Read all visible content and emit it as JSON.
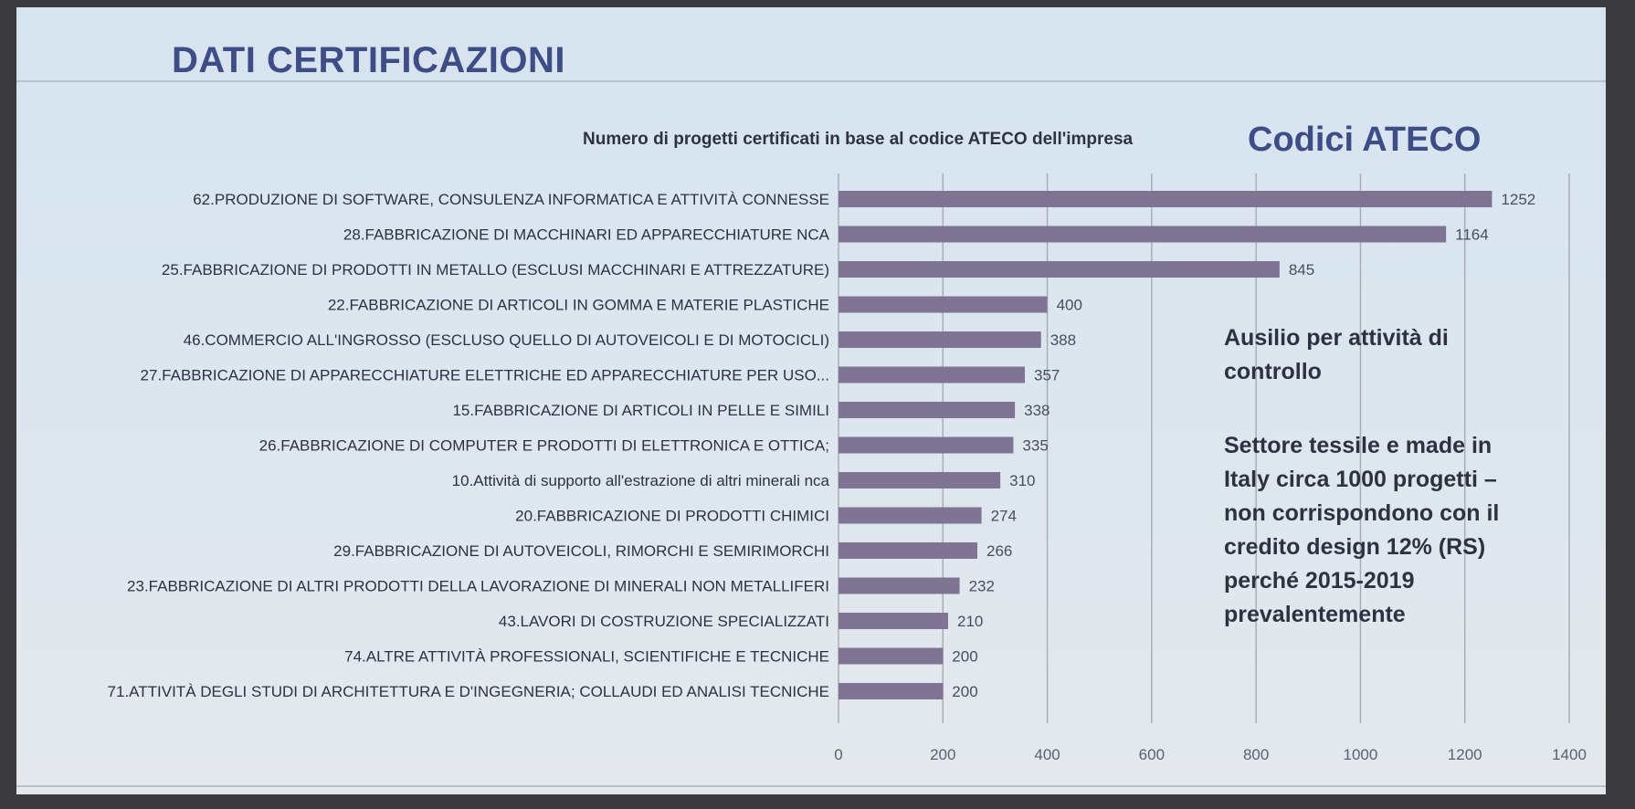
{
  "slide": {
    "title": "DATI CERTIFICAZIONI",
    "corner_label": "Codici ATECO",
    "note_1": "Ausilio per attività di controllo",
    "note_2": "Settore tessile e made in Italy circa 1000 progetti – non corrispondono con il credito design 12% (RS) perché 2015-2019 prevalentemente"
  },
  "chart_data": {
    "type": "bar",
    "orientation": "horizontal",
    "title": "Numero di progetti certificati in base al codice ATECO dell'impresa",
    "xlabel": "",
    "ylabel": "",
    "xlim": [
      0,
      1400
    ],
    "xticks": [
      0,
      200,
      400,
      600,
      800,
      1000,
      1200,
      1400
    ],
    "grid": "vertical",
    "colors": {
      "bar": "#7f7494",
      "text": "#2e3140",
      "grid": "#a9aeb6"
    },
    "categories": [
      "62.PRODUZIONE DI SOFTWARE, CONSULENZA INFORMATICA E ATTIVITÀ CONNESSE",
      "28.FABBRICAZIONE DI MACCHINARI ED APPARECCHIATURE NCA",
      "25.FABBRICAZIONE DI PRODOTTI IN METALLO (ESCLUSI MACCHINARI E ATTREZZATURE)",
      "22.FABBRICAZIONE DI ARTICOLI IN GOMMA E MATERIE PLASTICHE",
      "46.COMMERCIO ALL'INGROSSO (ESCLUSO QUELLO DI AUTOVEICOLI E DI MOTOCICLI)",
      "27.FABBRICAZIONE DI APPARECCHIATURE ELETTRICHE ED APPARECCHIATURE PER USO...",
      "15.FABBRICAZIONE DI ARTICOLI IN PELLE E SIMILI",
      "26.FABBRICAZIONE DI COMPUTER E PRODOTTI DI ELETTRONICA E OTTICA;",
      "10.Attività di supporto all'estrazione di altri minerali nca",
      "20.FABBRICAZIONE DI PRODOTTI CHIMICI",
      "29.FABBRICAZIONE DI AUTOVEICOLI, RIMORCHI E SEMIRIMORCHI",
      "23.FABBRICAZIONE DI ALTRI PRODOTTI DELLA LAVORAZIONE DI MINERALI NON METALLIFERI",
      "43.LAVORI DI COSTRUZIONE SPECIALIZZATI",
      "74.ALTRE ATTIVITÀ PROFESSIONALI, SCIENTIFICHE E TECNICHE",
      "71.ATTIVITÀ DEGLI STUDI DI ARCHITETTURA E D'INGEGNERIA; COLLAUDI ED ANALISI TECNICHE"
    ],
    "values": [
      1252,
      1164,
      845,
      400,
      388,
      357,
      338,
      335,
      310,
      274,
      266,
      232,
      210,
      200,
      200
    ]
  }
}
